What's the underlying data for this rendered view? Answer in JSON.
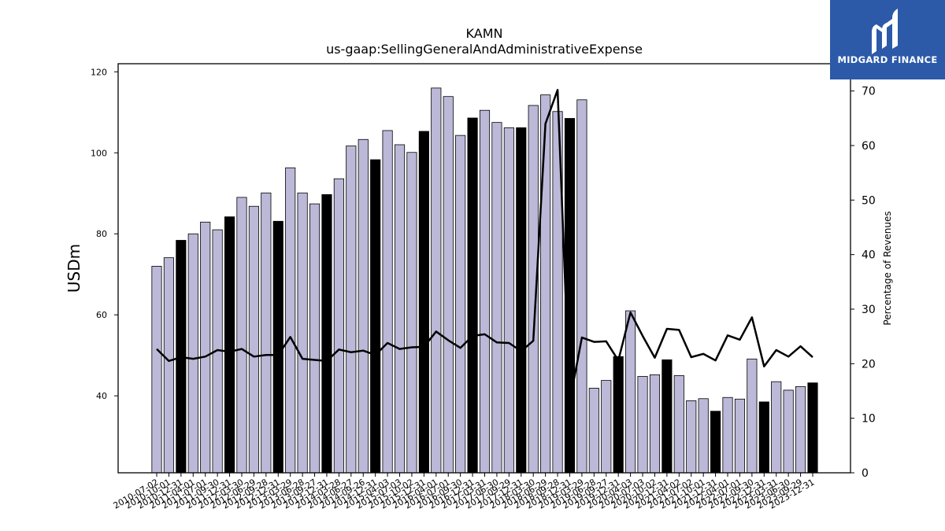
{
  "chart_data": {
    "type": "bar",
    "title": "KAMN",
    "subtitle": "us-gaap:SellingGeneralAndAdministrativeExpense",
    "xlabel": "",
    "ylabel": "USDm",
    "y2label": "Percentage of Revenues",
    "ylim": [
      21,
      122
    ],
    "y2lim": [
      0,
      75
    ],
    "yticks": [
      40,
      60,
      80,
      100,
      120
    ],
    "y2ticks": [
      0,
      10,
      20,
      30,
      40,
      50,
      60,
      70
    ],
    "grid": false,
    "categories": [
      "2010-07-02",
      "2010-10-01",
      "2010-12-31",
      "2011-04-01",
      "2011-07-01",
      "2011-09-30",
      "2011-12-31",
      "2012-03-30",
      "2012-06-29",
      "2012-09-28",
      "2012-12-31",
      "2013-03-29",
      "2013-06-28",
      "2013-09-27",
      "2013-12-31",
      "2014-03-28",
      "2014-06-27",
      "2014-09-26",
      "2014-12-31",
      "2015-04-03",
      "2015-07-03",
      "2015-10-02",
      "2015-12-31",
      "2016-04-01",
      "2016-07-01",
      "2016-09-30",
      "2016-12-31",
      "2017-03-31",
      "2017-06-30",
      "2017-09-29",
      "2017-12-31",
      "2018-03-30",
      "2018-06-29",
      "2018-09-28",
      "2018-12-31",
      "2019-03-29",
      "2019-06-28",
      "2019-09-27",
      "2019-12-31",
      "2020-04-03",
      "2020-07-03",
      "2020-10-02",
      "2020-12-31",
      "2021-04-02",
      "2021-07-02",
      "2021-10-01",
      "2021-12-31",
      "2022-04-01",
      "2022-07-01",
      "2022-09-30",
      "2022-12-31",
      "2023-03-31",
      "2023-06-30",
      "2023-09-29",
      "2023-12-31"
    ],
    "series": [
      {
        "type": "bar",
        "values": [
          72.0,
          74.1,
          78.4,
          80.0,
          82.9,
          81.0,
          84.2,
          89.0,
          86.8,
          90.1,
          83.1,
          96.3,
          90.1,
          87.4,
          89.7,
          93.6,
          101.7,
          103.3,
          98.3,
          105.5,
          102.0,
          100.1,
          105.3,
          116.0,
          113.9,
          104.3,
          108.6,
          110.5,
          107.5,
          106.2,
          106.2,
          111.7,
          114.3,
          110.2,
          108.5,
          113.1,
          41.9,
          43.8,
          49.7,
          61.0,
          44.8,
          45.2,
          48.9,
          45.0,
          38.8,
          39.3,
          36.2,
          39.6,
          39.2,
          49.1,
          38.5,
          43.5,
          41.4,
          42.3,
          43.2
        ],
        "highlighted": [
          false,
          false,
          true,
          false,
          false,
          false,
          true,
          false,
          false,
          false,
          true,
          false,
          false,
          false,
          true,
          false,
          false,
          false,
          true,
          false,
          false,
          false,
          true,
          false,
          false,
          false,
          true,
          false,
          false,
          false,
          true,
          false,
          false,
          false,
          true,
          false,
          false,
          false,
          true,
          false,
          false,
          false,
          true,
          false,
          false,
          false,
          true,
          false,
          false,
          false,
          true,
          false,
          false,
          false,
          true
        ]
      },
      {
        "type": "line",
        "axis": "right",
        "values": [
          22.7,
          20.5,
          21.2,
          20.9,
          21.3,
          22.5,
          22.2,
          22.7,
          21.3,
          21.6,
          21.6,
          24.9,
          20.9,
          20.7,
          20.5,
          22.6,
          22.1,
          22.4,
          21.6,
          23.8,
          22.7,
          23.0,
          23.1,
          25.9,
          24.3,
          22.9,
          25.1,
          25.4,
          23.9,
          23.8,
          22.3,
          24.2,
          64.0,
          70.2,
          13.0,
          24.8,
          24.0,
          24.1,
          20.6,
          29.4,
          25.1,
          21.1,
          26.4,
          26.2,
          21.2,
          21.8,
          20.6,
          25.2,
          24.4,
          28.5,
          19.5,
          22.5,
          21.3,
          23.2,
          21.2
        ]
      }
    ],
    "colors": {
      "bar": "#bcb8d8",
      "bar_highlight": "#000000",
      "bar_edge": "#000000",
      "line": "#000000"
    }
  },
  "logo": {
    "text": "MIDGARD FINANCE",
    "icon": "midgard-logo-icon",
    "background": "#2c5aa9"
  }
}
